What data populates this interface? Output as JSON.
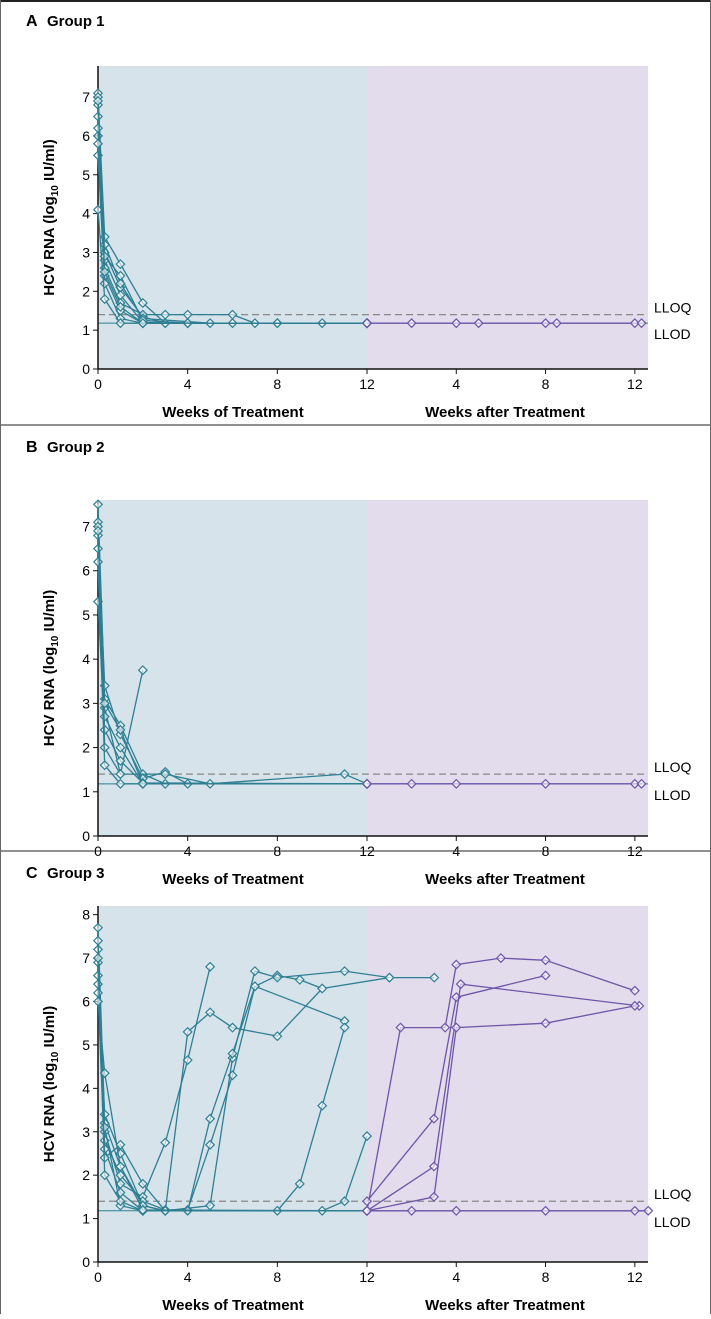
{
  "figure": {
    "panels": [
      {
        "letter": "A",
        "title": "Group 1"
      },
      {
        "letter": "B",
        "title": "Group 2"
      },
      {
        "letter": "C",
        "title": "Group 3"
      }
    ],
    "ylabel_main": "HCV RNA (log",
    "ylabel_sub": "10",
    "ylabel_tail": " IU/ml)",
    "xlabel_treatment": "Weeks of Treatment",
    "xlabel_after": "Weeks after Treatment",
    "lloq_label": "LLOQ",
    "llod_label": "LLOD"
  },
  "colors": {
    "treatment_bg": "#d6e3ea",
    "followup_bg": "#e2dcec",
    "teal": "#2f7f93",
    "purple": "#6e55a8",
    "lloq_line": "#888888",
    "llod_line": "#2f7f93"
  },
  "chart_data": [
    {
      "type": "line",
      "title": "Group 1",
      "xlabel": "Weeks of Treatment / Weeks after Treatment",
      "ylabel": "HCV RNA (log10 IU/ml)",
      "ylim": [
        0,
        7.8
      ],
      "yticks": [
        0,
        1,
        2,
        3,
        4,
        5,
        6,
        7
      ],
      "xticks": [
        "0",
        "4",
        "8",
        "12",
        "4",
        "8",
        "12"
      ],
      "lloq": 1.4,
      "llod": 1.18,
      "series": [
        {
          "segment": "treatment",
          "points": [
            [
              0,
              7.1
            ],
            [
              0.3,
              3.0
            ],
            [
              1,
              2.1
            ],
            [
              2,
              1.35
            ],
            [
              3,
              1.18
            ],
            [
              4,
              1.18
            ],
            [
              6,
              1.18
            ],
            [
              8,
              1.18
            ],
            [
              10,
              1.18
            ],
            [
              12,
              1.18
            ]
          ]
        },
        {
          "segment": "treatment",
          "points": [
            [
              0,
              6.8
            ],
            [
              0.3,
              2.8
            ],
            [
              1,
              1.9
            ],
            [
              2,
              1.2
            ],
            [
              4,
              1.18
            ],
            [
              8,
              1.18
            ],
            [
              12,
              1.18
            ]
          ]
        },
        {
          "segment": "treatment",
          "points": [
            [
              0,
              6.5
            ],
            [
              0.3,
              2.6
            ],
            [
              1,
              1.7
            ],
            [
              2,
              1.4
            ],
            [
              3,
              1.4
            ],
            [
              4,
              1.4
            ],
            [
              6,
              1.4
            ],
            [
              7,
              1.18
            ],
            [
              12,
              1.18
            ]
          ]
        },
        {
          "segment": "treatment",
          "points": [
            [
              0,
              6.0
            ],
            [
              0.3,
              2.4
            ],
            [
              1,
              1.5
            ],
            [
              2,
              1.18
            ],
            [
              4,
              1.18
            ],
            [
              12,
              1.18
            ]
          ]
        },
        {
          "segment": "treatment",
          "points": [
            [
              0,
              5.5
            ],
            [
              0.3,
              2.2
            ],
            [
              1,
              1.3
            ],
            [
              2,
              1.18
            ],
            [
              12,
              1.18
            ]
          ]
        },
        {
          "segment": "treatment",
          "points": [
            [
              0,
              7.0
            ],
            [
              0.3,
              3.4
            ],
            [
              1,
              2.7
            ],
            [
              2,
              1.7
            ],
            [
              3,
              1.18
            ],
            [
              12,
              1.18
            ]
          ]
        },
        {
          "segment": "treatment",
          "points": [
            [
              0,
              4.1
            ],
            [
              0.3,
              1.8
            ],
            [
              1,
              1.18
            ],
            [
              12,
              1.18
            ]
          ]
        },
        {
          "segment": "treatment",
          "points": [
            [
              0,
              6.2
            ],
            [
              0.3,
              3.2
            ],
            [
              1,
              2.2
            ],
            [
              2,
              1.3
            ],
            [
              5,
              1.18
            ],
            [
              12,
              1.18
            ]
          ]
        },
        {
          "segment": "treatment",
          "points": [
            [
              0,
              6.9
            ],
            [
              0.3,
              2.9
            ],
            [
              1,
              2.4
            ],
            [
              2,
              1.25
            ],
            [
              4,
              1.18
            ],
            [
              12,
              1.18
            ]
          ]
        },
        {
          "segment": "treatment",
          "points": [
            [
              0,
              5.8
            ],
            [
              0.3,
              2.5
            ],
            [
              1,
              1.6
            ],
            [
              2,
              1.18
            ],
            [
              12,
              1.18
            ]
          ]
        },
        {
          "segment": "followup",
          "points": [
            [
              0,
              1.18
            ],
            [
              2,
              1.18
            ],
            [
              4,
              1.18
            ],
            [
              5,
              1.18
            ],
            [
              8,
              1.18
            ],
            [
              8.5,
              1.18
            ],
            [
              12,
              1.18
            ],
            [
              12.3,
              1.18
            ]
          ]
        }
      ]
    },
    {
      "type": "line",
      "title": "Group 2",
      "xlabel": "Weeks of Treatment / Weeks after Treatment",
      "ylabel": "HCV RNA (log10 IU/ml)",
      "ylim": [
        0,
        7.6
      ],
      "yticks": [
        0,
        1,
        2,
        3,
        4,
        5,
        6,
        7
      ],
      "xticks": [
        "0",
        "4",
        "8",
        "12",
        "4",
        "8",
        "12"
      ],
      "lloq": 1.4,
      "llod": 1.18,
      "series": [
        {
          "segment": "treatment",
          "points": [
            [
              0,
              7.5
            ],
            [
              0.3,
              3.1
            ],
            [
              1,
              2.5
            ],
            [
              2,
              1.4
            ],
            [
              3,
              1.18
            ],
            [
              12,
              1.18
            ]
          ]
        },
        {
          "segment": "treatment",
          "points": [
            [
              0,
              7.1
            ],
            [
              0.3,
              2.9
            ],
            [
              1,
              1.4
            ],
            [
              2,
              3.75
            ]
          ]
        },
        {
          "segment": "treatment",
          "points": [
            [
              0,
              6.8
            ],
            [
              0.3,
              3.4
            ],
            [
              1,
              2.3
            ],
            [
              2,
              1.3
            ],
            [
              3,
              1.45
            ],
            [
              4,
              1.18
            ],
            [
              12,
              1.18
            ]
          ]
        },
        {
          "segment": "treatment",
          "points": [
            [
              0,
              6.5
            ],
            [
              0.3,
              2.7
            ],
            [
              1,
              2.0
            ],
            [
              2,
              1.18
            ],
            [
              12,
              1.18
            ]
          ]
        },
        {
          "segment": "treatment",
          "points": [
            [
              0,
              5.3
            ],
            [
              0.3,
              2.4
            ],
            [
              1,
              1.7
            ],
            [
              2,
              1.2
            ],
            [
              12,
              1.18
            ]
          ]
        },
        {
          "segment": "treatment",
          "points": [
            [
              0,
              7.0
            ],
            [
              0.3,
              2.0
            ],
            [
              1,
              1.4
            ],
            [
              3,
              1.4
            ],
            [
              5,
              1.18
            ],
            [
              11,
              1.4
            ],
            [
              12,
              1.18
            ]
          ]
        },
        {
          "segment": "treatment",
          "points": [
            [
              0,
              6.2
            ],
            [
              0.3,
              1.6
            ],
            [
              1,
              1.18
            ],
            [
              12,
              1.18
            ]
          ]
        },
        {
          "segment": "treatment",
          "points": [
            [
              0,
              6.9
            ],
            [
              0.3,
              3.0
            ],
            [
              1,
              2.4
            ],
            [
              2,
              1.18
            ],
            [
              12,
              1.18
            ]
          ]
        },
        {
          "segment": "followup",
          "points": [
            [
              0,
              1.18
            ],
            [
              2,
              1.18
            ],
            [
              4,
              1.18
            ],
            [
              8,
              1.18
            ],
            [
              12,
              1.18
            ],
            [
              12.3,
              1.18
            ]
          ]
        }
      ]
    },
    {
      "type": "line",
      "title": "Group 3",
      "xlabel": "Weeks of Treatment / Weeks after Treatment",
      "ylabel": "HCV RNA (log10 IU/ml)",
      "ylim": [
        0,
        8.2
      ],
      "yticks": [
        0,
        1,
        2,
        3,
        4,
        5,
        6,
        7,
        8
      ],
      "xticks": [
        "0",
        "4",
        "8",
        "12",
        "4",
        "8",
        "12"
      ],
      "lloq": 1.4,
      "llod": 1.18,
      "series": [
        {
          "segment": "treatment",
          "points": [
            [
              0,
              7.7
            ],
            [
              0.3,
              3.2
            ],
            [
              1,
              2.2
            ],
            [
              2,
              1.3
            ],
            [
              3,
              1.18
            ],
            [
              4,
              5.3
            ],
            [
              5,
              5.75
            ],
            [
              6,
              5.4
            ],
            [
              8,
              5.2
            ],
            [
              10,
              6.3
            ],
            [
              13,
              6.55
            ],
            [
              15,
              6.55
            ]
          ]
        },
        {
          "segment": "treatment",
          "points": [
            [
              0,
              7.2
            ],
            [
              0.3,
              3.0
            ],
            [
              1,
              1.8
            ],
            [
              2,
              1.5
            ],
            [
              3,
              2.75
            ],
            [
              4,
              4.65
            ],
            [
              5,
              6.8
            ]
          ]
        },
        {
          "segment": "treatment",
          "points": [
            [
              0,
              6.9
            ],
            [
              0.3,
              2.8
            ],
            [
              1,
              2.0
            ],
            [
              2,
              1.4
            ],
            [
              3,
              1.2
            ],
            [
              4,
              1.2
            ],
            [
              5,
              2.7
            ],
            [
              6,
              4.3
            ],
            [
              7,
              6.35
            ],
            [
              8,
              6.6
            ],
            [
              9,
              6.5
            ],
            [
              10,
              6.3
            ]
          ]
        },
        {
          "segment": "treatment",
          "points": [
            [
              0,
              6.6
            ],
            [
              0.3,
              3.4
            ],
            [
              1,
              2.5
            ],
            [
              2,
              1.3
            ],
            [
              3,
              1.18
            ],
            [
              5,
              1.3
            ],
            [
              6,
              4.7
            ],
            [
              7,
              6.7
            ],
            [
              8,
              6.55
            ],
            [
              11,
              6.7
            ],
            [
              13,
              6.55
            ]
          ]
        },
        {
          "segment": "treatment",
          "points": [
            [
              0,
              6.4
            ],
            [
              0.3,
              2.6
            ],
            [
              1,
              1.6
            ],
            [
              2,
              1.18
            ],
            [
              4,
              1.18
            ],
            [
              5,
              3.3
            ],
            [
              6,
              4.8
            ],
            [
              7,
              6.35
            ],
            [
              11,
              5.55
            ]
          ]
        },
        {
          "segment": "treatment",
          "points": [
            [
              0,
              7.4
            ],
            [
              0.3,
              3.1
            ],
            [
              1,
              1.3
            ],
            [
              2,
              1.18
            ],
            [
              8,
              1.18
            ],
            [
              9,
              1.8
            ],
            [
              10,
              3.6
            ],
            [
              11,
              5.4
            ]
          ]
        },
        {
          "segment": "treatment",
          "points": [
            [
              0,
              6.2
            ],
            [
              0.3,
              2.4
            ],
            [
              1,
              2.7
            ],
            [
              2,
              1.8
            ],
            [
              3,
              1.18
            ],
            [
              10,
              1.18
            ],
            [
              11,
              1.4
            ],
            [
              12,
              2.9
            ]
          ]
        },
        {
          "segment": "treatment",
          "points": [
            [
              0,
              7.0
            ],
            [
              0.3,
              2.0
            ],
            [
              1,
              1.4
            ],
            [
              2,
              1.18
            ],
            [
              12,
              1.18
            ]
          ]
        },
        {
          "segment": "treatment",
          "points": [
            [
              0,
              6.0
            ],
            [
              0.3,
              4.35
            ],
            [
              1,
              2.2
            ],
            [
              2,
              1.2
            ],
            [
              12,
              1.18
            ]
          ]
        },
        {
          "segment": "followup",
          "points": [
            [
              0,
              1.18
            ],
            [
              1.5,
              5.4
            ],
            [
              3.5,
              5.4
            ],
            [
              4,
              6.85
            ],
            [
              6,
              7.0
            ],
            [
              8,
              6.95
            ],
            [
              12,
              6.25
            ]
          ]
        },
        {
          "segment": "followup",
          "points": [
            [
              0,
              1.4
            ],
            [
              3,
              3.3
            ],
            [
              4,
              6.1
            ],
            [
              8,
              6.6
            ]
          ]
        },
        {
          "segment": "followup",
          "points": [
            [
              0,
              1.18
            ],
            [
              3,
              2.2
            ],
            [
              4.2,
              6.4
            ],
            [
              12.2,
              5.9
            ]
          ]
        },
        {
          "segment": "followup",
          "points": [
            [
              0,
              1.18
            ],
            [
              3,
              1.5
            ],
            [
              4,
              5.4
            ],
            [
              8,
              5.5
            ],
            [
              12,
              5.9
            ]
          ]
        },
        {
          "segment": "followup",
          "points": [
            [
              0,
              1.18
            ],
            [
              2,
              1.18
            ],
            [
              4,
              1.18
            ],
            [
              8,
              1.18
            ],
            [
              12,
              1.18
            ],
            [
              12.6,
              1.18
            ]
          ]
        }
      ]
    }
  ]
}
